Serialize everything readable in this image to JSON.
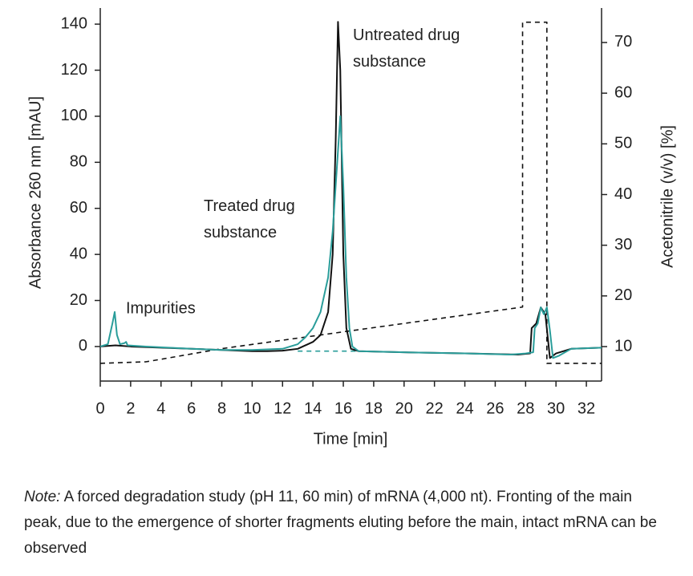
{
  "chart_data": {
    "type": "line",
    "x_label": "Time [min]",
    "y_label": "Absorbance 260 nm [mAU]",
    "y2_label": "Acetonitrile (v/v) [%]",
    "xlim": [
      0,
      33
    ],
    "xticks": [
      0,
      2,
      4,
      6,
      8,
      10,
      12,
      14,
      16,
      18,
      20,
      22,
      24,
      26,
      28,
      30,
      32
    ],
    "ylim": [
      -15,
      147
    ],
    "yticks": [
      0,
      20,
      40,
      60,
      80,
      100,
      120,
      140
    ],
    "y2lim": [
      3.2,
      76.8
    ],
    "y2ticks": [
      10,
      20,
      30,
      40,
      50,
      60,
      70
    ],
    "legend": false,
    "annotations": [
      "Impurities"
    ],
    "series": [
      {
        "name": "Untreated drug substance",
        "color": "#111111",
        "dashed": false,
        "x": [
          0,
          1,
          2,
          4,
          6,
          8,
          10,
          11,
          12,
          13,
          14,
          14.5,
          15,
          15.3,
          15.5,
          15.65,
          15.8,
          16,
          16.2,
          16.5,
          17,
          20,
          24,
          27.5,
          28.3,
          28.4,
          28.7,
          29,
          29.3,
          29.6,
          30,
          31,
          33
        ],
        "values": [
          0,
          0.5,
          0,
          -0.5,
          -1,
          -1.5,
          -2,
          -2,
          -1.8,
          -1,
          2,
          5,
          15,
          40,
          90,
          141,
          120,
          40,
          8,
          -1,
          -2,
          -2.5,
          -3,
          -3.5,
          -3,
          8,
          10,
          17,
          14,
          -5,
          -3,
          -1,
          -0.5
        ]
      },
      {
        "name": "Treated drug substance",
        "color": "#2a9d9a",
        "dashed": false,
        "x": [
          0,
          0.5,
          0.8,
          0.95,
          1.1,
          1.3,
          1.6,
          1.7,
          1.8,
          3,
          6,
          8,
          10,
          12,
          13,
          13.5,
          14,
          14.5,
          15,
          15.3,
          15.6,
          15.8,
          16,
          16.2,
          16.4,
          16.6,
          17,
          20,
          24,
          27,
          28,
          28.5,
          28.6,
          28.8,
          29,
          29.2,
          29.4,
          29.6,
          29.8,
          30.2,
          31,
          33
        ],
        "values": [
          0,
          1,
          10,
          15,
          5,
          1,
          1.5,
          2,
          0.5,
          0,
          -1,
          -1.5,
          -1.5,
          -1,
          1,
          4,
          8,
          15,
          30,
          50,
          80,
          100,
          70,
          30,
          8,
          0,
          -2,
          -2.5,
          -3,
          -3.5,
          -3,
          -2.5,
          8,
          10,
          17,
          14,
          17,
          7,
          -5,
          -4,
          -1,
          -0.5
        ]
      },
      {
        "color": "#2a9d9a",
        "dashed": true,
        "x": [
          13,
          17
        ],
        "values": [
          -2,
          -2
        ]
      },
      {
        "color": "#111111",
        "dashed": true,
        "axis": "y2",
        "x": [
          0,
          3,
          4,
          8,
          27.8,
          27.8,
          29.4,
          29.4,
          33
        ],
        "values": [
          6.7,
          7,
          7.5,
          9.6,
          17.8,
          74,
          74,
          6.7,
          6.7
        ]
      }
    ]
  },
  "note": {
    "label": "Note:",
    "text": "A forced degradation study (pH 11, 60 min) of mRNA (4,000 nt). Fronting of the main peak, due to the emergence of shorter fragments eluting before the main, intact mRNA can be observed"
  }
}
